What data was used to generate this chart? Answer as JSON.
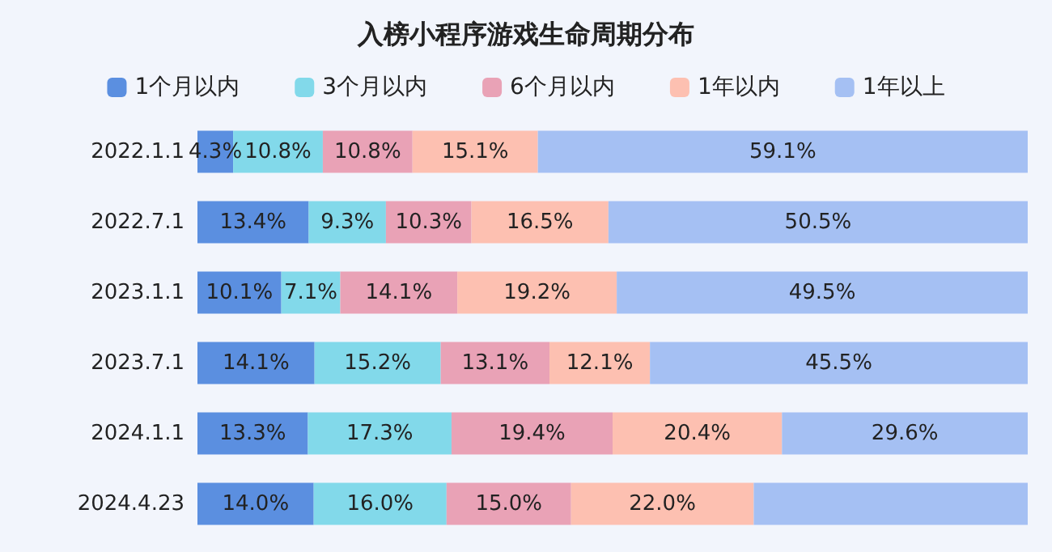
{
  "chart_data": {
    "type": "bar",
    "orientation": "horizontal",
    "stacked": true,
    "xlim": [
      0,
      100
    ],
    "tick_labels": "y",
    "title": "入榜小程序游戏生命周期分布",
    "categories": [
      "2022.1.1",
      "2022.7.1",
      "2023.1.1",
      "2023.7.1",
      "2024.1.1",
      "2024.4.23"
    ],
    "series": [
      {
        "name": "1个月以内",
        "color": "#5b8fe0",
        "values": [
          4.3,
          13.4,
          10.1,
          14.1,
          13.3,
          14.0
        ],
        "value_labels": [
          "4.3%",
          "13.4%",
          "10.1%",
          "14.1%",
          "13.3%",
          "14.0%"
        ]
      },
      {
        "name": "3个月以内",
        "color": "#82d9ea",
        "values": [
          10.8,
          9.3,
          7.1,
          15.2,
          17.3,
          16.0
        ],
        "value_labels": [
          "10.8%",
          "9.3%",
          "7.1%",
          "15.2%",
          "17.3%",
          "16.0%"
        ]
      },
      {
        "name": "6个月以内",
        "color": "#e9a2b6",
        "values": [
          10.8,
          10.3,
          14.1,
          13.1,
          19.4,
          15.0
        ],
        "value_labels": [
          "10.8%",
          "10.3%",
          "14.1%",
          "13.1%",
          "19.4%",
          "15.0%"
        ]
      },
      {
        "name": "1年以内",
        "color": "#fdc0b1",
        "values": [
          15.1,
          16.5,
          19.2,
          12.1,
          20.4,
          22.0
        ],
        "value_labels": [
          "15.1%",
          "16.5%",
          "19.2%",
          "12.1%",
          "20.4%",
          "22.0%"
        ]
      },
      {
        "name": "1年以上",
        "color": "#a5c0f3",
        "values": [
          59.1,
          50.5,
          49.5,
          45.5,
          29.6,
          33.0
        ],
        "value_labels": [
          "59.1%",
          "50.5%",
          "49.5%",
          "45.5%",
          "29.6%",
          null
        ]
      }
    ],
    "legend": "top"
  }
}
